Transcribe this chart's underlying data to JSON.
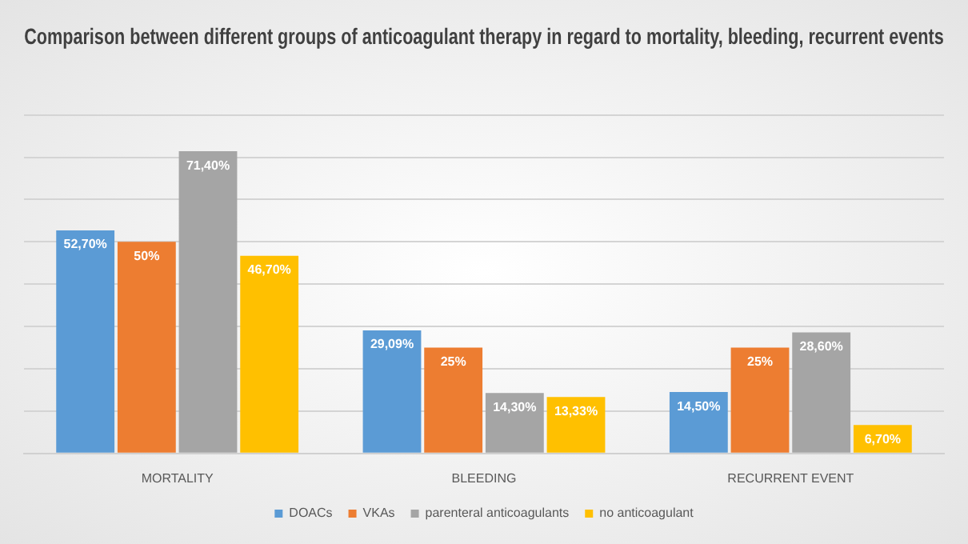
{
  "chart_data": {
    "type": "bar",
    "title": "Comparison between different groups of anticoagulant therapy in regard to mortality, bleeding, recurrent events",
    "categories": [
      "MORTALITY",
      "BLEEDING",
      "RECURRENT EVENT"
    ],
    "series": [
      {
        "name": "DOACs",
        "color": "#5b9bd5",
        "values": [
          52.7,
          29.09,
          14.5
        ],
        "value_labels": [
          "52,70%",
          "29,09%",
          "14,50%"
        ]
      },
      {
        "name": "VKAs",
        "color": "#ed7d31",
        "values": [
          50,
          25,
          25
        ],
        "value_labels": [
          "50%",
          "25%",
          "25%"
        ]
      },
      {
        "name": "parenteral anticoagulants",
        "color": "#a5a5a5",
        "values": [
          71.4,
          14.3,
          28.6
        ],
        "value_labels": [
          "71,40%",
          "14,30%",
          "28,60%"
        ]
      },
      {
        "name": "no anticoagulant",
        "color": "#ffc000",
        "values": [
          46.7,
          13.33,
          6.7
        ],
        "value_labels": [
          "46,70%",
          "13,33%",
          "6,70%"
        ]
      }
    ],
    "ylim": [
      0,
      80
    ],
    "yticks": [
      {
        "value": 0,
        "label": null
      },
      {
        "value": 10,
        "label": null
      },
      {
        "value": 20,
        "label": null
      },
      {
        "value": 30,
        "label": null
      },
      {
        "value": 40,
        "label": null
      },
      {
        "value": 50,
        "label": null
      },
      {
        "value": 60,
        "label": null
      },
      {
        "value": 70,
        "label": null
      },
      {
        "value": 80,
        "label": null
      }
    ],
    "tick_labels": "x",
    "grid": "y",
    "legend": "bottom"
  }
}
